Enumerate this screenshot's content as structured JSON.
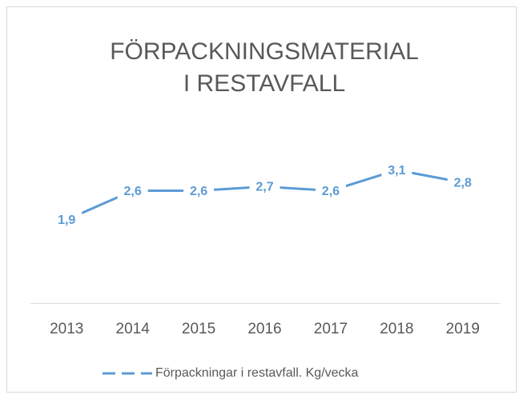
{
  "chart_data": {
    "type": "line",
    "title": [
      "FÖRPACKNINGSMATERIAL",
      "I RESTAVFALL"
    ],
    "categories": [
      "2013",
      "2014",
      "2015",
      "2016",
      "2017",
      "2018",
      "2019"
    ],
    "series": [
      {
        "name": "Förpackningar i restavfall. Kg/vecka",
        "color": "#5b9bd5",
        "values": [
          1.9,
          2.6,
          2.6,
          2.7,
          2.6,
          3.1,
          2.8
        ],
        "value_labels": [
          "1,9",
          "2,6",
          "2,6",
          "2,7",
          "2,6",
          "3,1",
          "2,8"
        ]
      }
    ],
    "ylim": [
      0,
      3.5
    ],
    "legend": "bottom"
  }
}
